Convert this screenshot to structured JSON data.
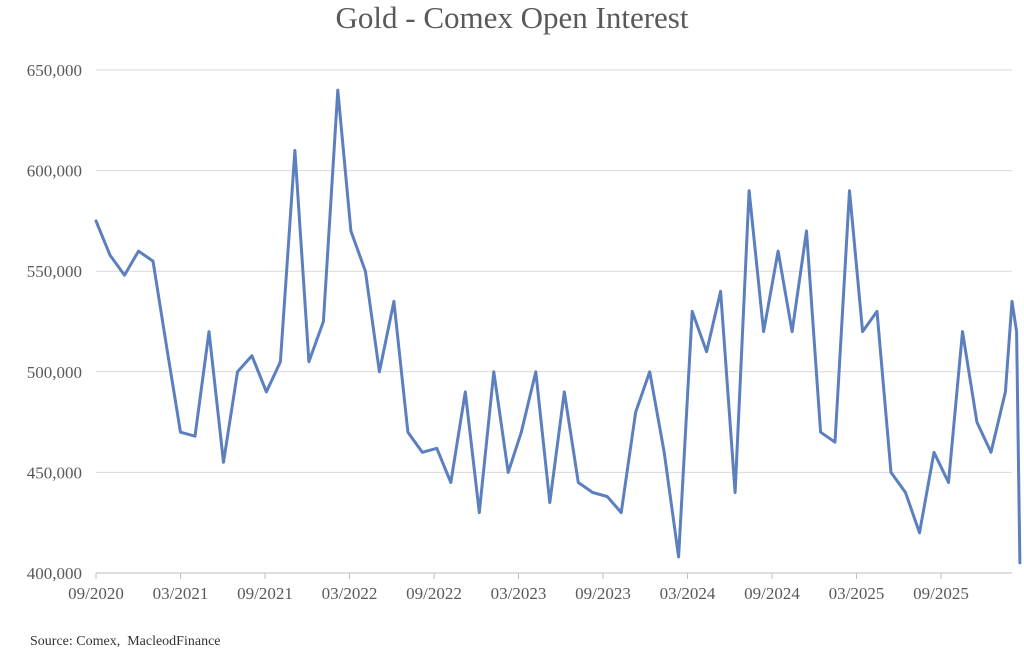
{
  "chart_data": {
    "type": "line",
    "title": "Gold - Comex Open Interest",
    "source": "Source: Comex,  MacleodFinance",
    "xlabel": "",
    "ylabel": "",
    "ylim": [
      400000,
      650000
    ],
    "yticks": [
      "400,000",
      "450,000",
      "500,000",
      "550,000",
      "600,000",
      "650,000"
    ],
    "xticks": [
      "09/2020",
      "03/2021",
      "09/2021",
      "03/2022",
      "09/2022",
      "03/2023",
      "09/2023",
      "03/2024",
      "09/2024",
      "03/2025",
      "09/2025"
    ],
    "grid": "horizontal",
    "legend": "none",
    "line_color": "#5b7fbf",
    "series": [
      {
        "x": [
          "2020-09",
          "2020-10",
          "2020-11",
          "2020-12",
          "2021-01",
          "2021-02",
          "2021-03",
          "2021-04",
          "2021-05",
          "2021-06",
          "2021-07",
          "2021-08",
          "2021-09",
          "2021-10",
          "2021-11",
          "2021-12",
          "2022-01",
          "2022-02",
          "2022-03",
          "2022-04",
          "2022-05",
          "2022-06",
          "2022-07",
          "2022-08",
          "2022-09",
          "2022-10",
          "2022-11",
          "2022-12",
          "2023-01",
          "2023-02",
          "2023-03",
          "2023-04",
          "2023-05",
          "2023-06",
          "2023-07",
          "2023-08",
          "2023-09",
          "2023-10",
          "2023-11",
          "2023-12",
          "2024-01",
          "2024-02",
          "2024-03",
          "2024-04",
          "2024-05",
          "2024-06",
          "2024-07",
          "2024-08",
          "2024-09",
          "2024-10",
          "2024-11",
          "2024-12",
          "2025-01",
          "2025-02",
          "2025-03",
          "2025-04",
          "2025-05",
          "2025-06",
          "2025-07",
          "2025-08",
          "2025-09",
          "2025-10",
          "2025-11",
          "2025-12",
          "2026-01"
        ],
        "values": [
          575000,
          558000,
          548000,
          560000,
          555000,
          510000,
          470000,
          468000,
          520000,
          455000,
          500000,
          508000,
          490000,
          505000,
          610000,
          505000,
          525000,
          640000,
          570000,
          550000,
          500000,
          535000,
          470000,
          460000,
          462000,
          445000,
          490000,
          430000,
          500000,
          450000,
          470000,
          500000,
          435000,
          490000,
          445000,
          440000,
          438000,
          430000,
          480000,
          500000,
          460000,
          408000,
          530000,
          510000,
          540000,
          440000,
          590000,
          520000,
          560000,
          520000,
          570000,
          470000,
          465000,
          590000,
          520000,
          530000,
          450000,
          440000,
          420000,
          460000,
          445000,
          520000,
          475000,
          460000,
          490000
        ]
      },
      {
        "x": [
          "2026-01-15",
          "2026-01-25",
          "2026-02-01"
        ],
        "values": [
          535000,
          520000,
          405000
        ]
      }
    ]
  }
}
